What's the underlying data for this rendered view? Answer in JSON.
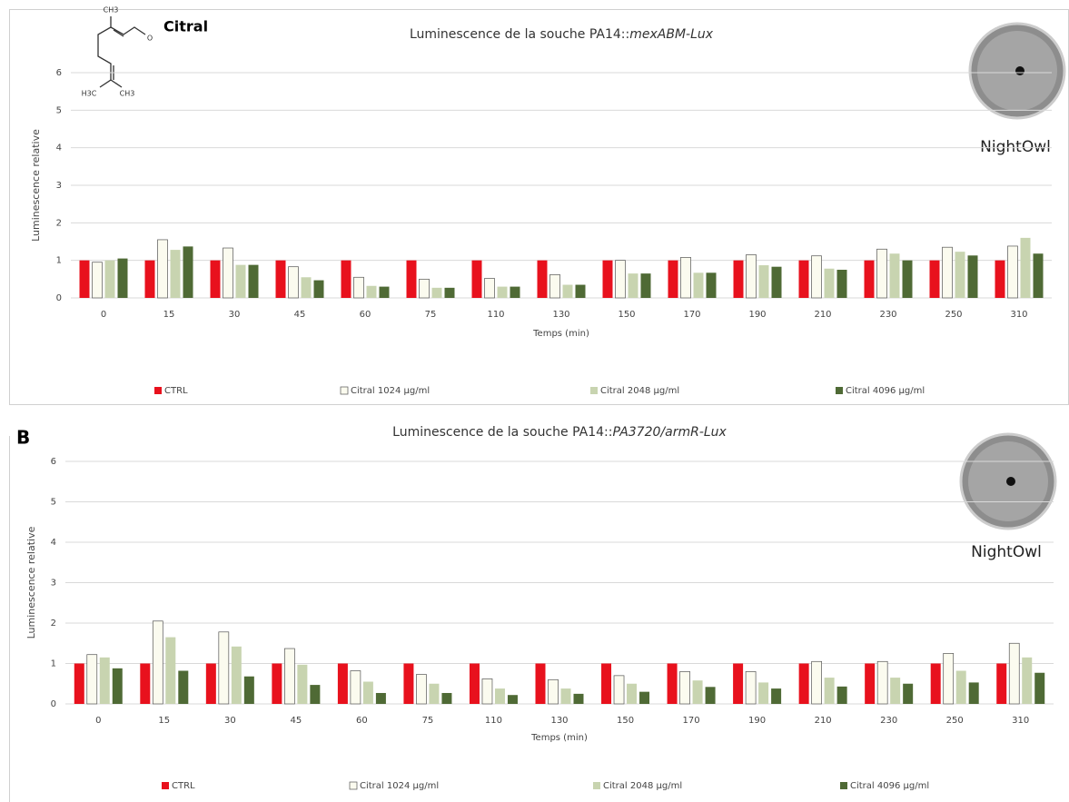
{
  "chart_data": [
    {
      "type": "bar",
      "title": [
        "Luminescence de la souche PA14::",
        "mexABM-Lux"
      ],
      "x_label": "Temps (min)",
      "y_label": "Luminescence relative",
      "compound": "Citral",
      "molecule_labels": [
        "CH3",
        "H3C",
        "CH3",
        "O"
      ],
      "image_label": "NightOwl",
      "categories": [
        "0",
        "15",
        "30",
        "45",
        "60",
        "75",
        "110",
        "130",
        "150",
        "170",
        "190",
        "210",
        "230",
        "250",
        "310"
      ],
      "series": [
        {
          "name": "CTRL",
          "color": "#e8111d",
          "values": [
            1,
            1,
            1,
            1,
            1,
            1,
            1,
            1,
            1,
            1,
            1,
            1,
            1,
            1,
            1
          ]
        },
        {
          "name": "Citral 1024 µg/ml",
          "color": "#fbfbef",
          "values": [
            0.95,
            1.55,
            1.33,
            0.83,
            0.55,
            0.5,
            0.52,
            0.62,
            1.0,
            1.08,
            1.15,
            1.12,
            1.3,
            1.35,
            1.38
          ]
        },
        {
          "name": "Citral 2048 µg/ml",
          "color": "#c8d4b0",
          "values": [
            1.0,
            1.28,
            0.88,
            0.55,
            0.32,
            0.27,
            0.3,
            0.35,
            0.65,
            0.67,
            0.87,
            0.78,
            1.18,
            1.23,
            1.6
          ]
        },
        {
          "name": "Citral 4096 µg/ml",
          "color": "#4f6a35",
          "values": [
            1.05,
            1.37,
            0.88,
            0.47,
            0.3,
            0.27,
            0.3,
            0.35,
            0.65,
            0.67,
            0.83,
            0.75,
            1.0,
            1.13,
            1.18
          ]
        }
      ],
      "ylim": [
        0,
        6
      ],
      "yticks": [
        0,
        1,
        2,
        3,
        4,
        5,
        6
      ],
      "grid": true,
      "legend": "bottom"
    },
    {
      "type": "bar",
      "panel_label": "B",
      "title": [
        "Luminescence de la souche PA14::",
        "PA3720/armR-Lux"
      ],
      "x_label": "Temps (min)",
      "y_label": "Luminescence relative",
      "image_label": "NightOwl",
      "categories": [
        "0",
        "15",
        "30",
        "45",
        "60",
        "75",
        "110",
        "130",
        "150",
        "170",
        "190",
        "210",
        "230",
        "250",
        "310"
      ],
      "series": [
        {
          "name": "CTRL",
          "color": "#e8111d",
          "values": [
            1,
            1,
            1,
            1,
            1,
            1,
            1,
            1,
            1,
            1,
            1,
            1,
            1,
            1,
            1
          ]
        },
        {
          "name": "Citral 1024 µg/ml",
          "color": "#fbfbef",
          "values": [
            1.22,
            2.05,
            1.78,
            1.37,
            0.82,
            0.73,
            0.62,
            0.6,
            0.7,
            0.8,
            0.8,
            1.05,
            1.05,
            1.25,
            1.5
          ]
        },
        {
          "name": "Citral 2048 µg/ml",
          "color": "#c8d4b0",
          "values": [
            1.15,
            1.65,
            1.42,
            0.97,
            0.55,
            0.5,
            0.38,
            0.38,
            0.5,
            0.58,
            0.53,
            0.65,
            0.65,
            0.82,
            1.15
          ]
        },
        {
          "name": "Citral 4096 µg/ml",
          "color": "#4f6a35",
          "values": [
            0.88,
            0.82,
            0.68,
            0.47,
            0.27,
            0.27,
            0.22,
            0.25,
            0.3,
            0.42,
            0.38,
            0.43,
            0.5,
            0.53,
            0.77
          ]
        }
      ],
      "ylim": [
        0,
        6
      ],
      "yticks": [
        0,
        1,
        2,
        3,
        4,
        5,
        6
      ],
      "grid": true,
      "legend": "bottom"
    }
  ]
}
